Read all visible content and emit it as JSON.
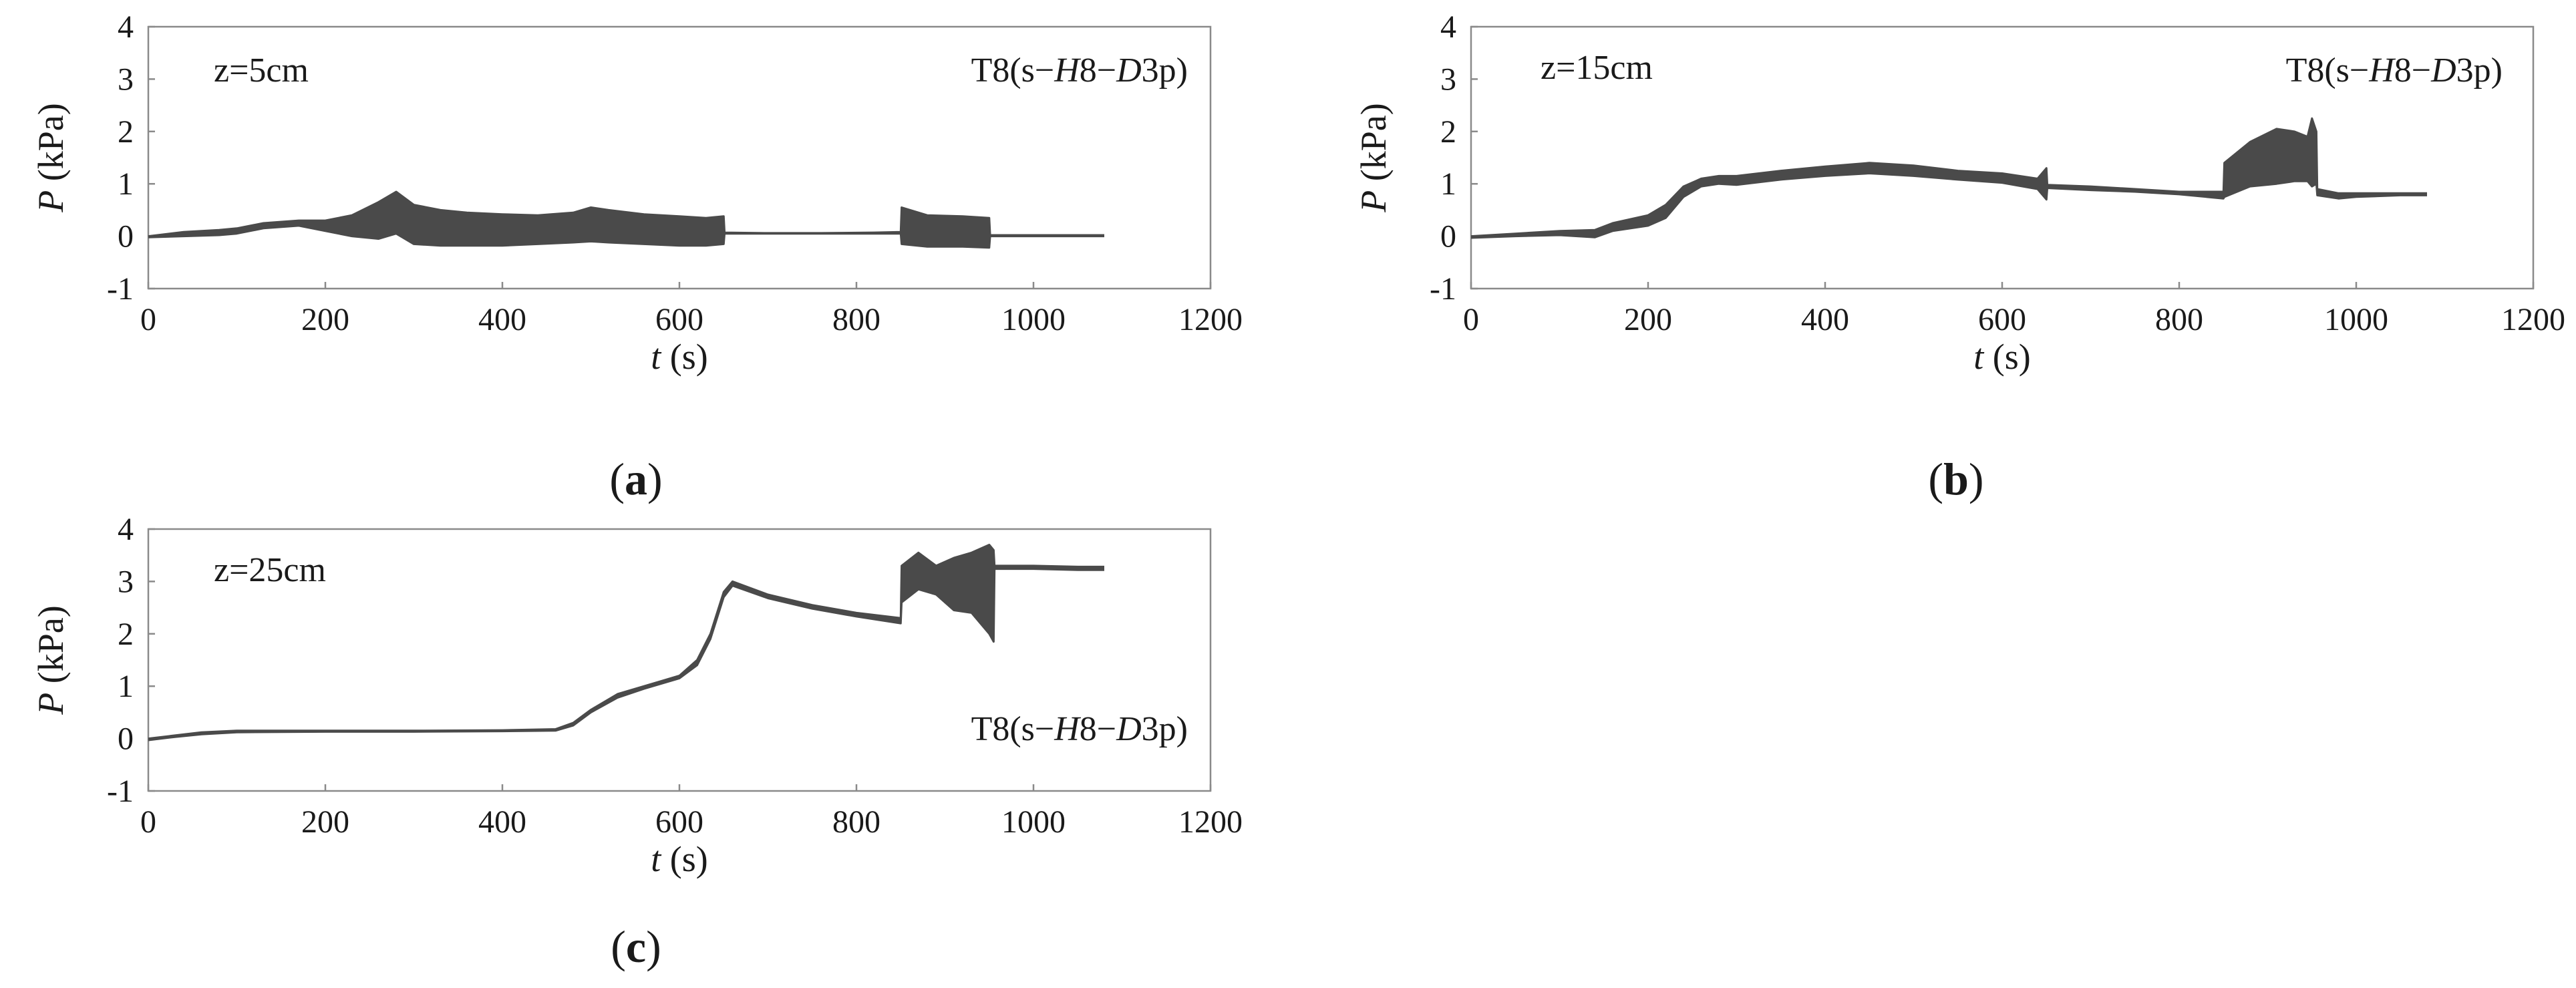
{
  "chart_data": [
    {
      "type": "line",
      "panel": "(a)",
      "caption_letter": "a",
      "depth_label": "z=5cm",
      "test_label": {
        "prefix": "T8(s−",
        "h": "H",
        "h_num": "8−",
        "d": "D",
        "suffix": "3p)"
      },
      "xlabel": {
        "var": "t",
        "unit": "(s)"
      },
      "ylabel": {
        "var": "P",
        "unit": "(kPa)"
      },
      "xlim": [
        0,
        1200
      ],
      "ylim": [
        -1,
        4
      ],
      "xticks": [
        0,
        200,
        400,
        600,
        800,
        1000,
        1200
      ],
      "yticks": [
        -1,
        0,
        1,
        2,
        3,
        4
      ],
      "xtick_labels": [
        "0",
        "200",
        "400",
        "600",
        "800",
        "1000",
        "1200"
      ],
      "ytick_labels": [
        "-1",
        "0",
        "1",
        "2",
        "3",
        "4"
      ],
      "series": [
        {
          "name": "upper envelope",
          "x": [
            0,
            40,
            80,
            100,
            130,
            170,
            200,
            230,
            260,
            280,
            300,
            330,
            360,
            400,
            440,
            480,
            500,
            520,
            560,
            600,
            630,
            650,
            651,
            700,
            760,
            820,
            850,
            851,
            880,
            920,
            950,
            951,
            1000,
            1050,
            1080
          ],
          "y": [
            0.0,
            0.08,
            0.12,
            0.15,
            0.25,
            0.3,
            0.3,
            0.4,
            0.65,
            0.85,
            0.6,
            0.5,
            0.45,
            0.42,
            0.4,
            0.45,
            0.55,
            0.5,
            0.42,
            0.38,
            0.35,
            0.38,
            0.07,
            0.06,
            0.06,
            0.07,
            0.08,
            0.55,
            0.4,
            0.38,
            0.35,
            0.02,
            0.02,
            0.02,
            0.02
          ]
        },
        {
          "name": "lower envelope",
          "x": [
            0,
            40,
            80,
            100,
            130,
            170,
            200,
            230,
            260,
            280,
            300,
            330,
            360,
            400,
            440,
            480,
            500,
            520,
            560,
            600,
            630,
            650,
            651,
            700,
            760,
            820,
            850,
            851,
            880,
            920,
            950,
            951,
            1000,
            1050,
            1080
          ],
          "y": [
            -0.02,
            0.0,
            0.02,
            0.05,
            0.15,
            0.2,
            0.1,
            0.0,
            -0.05,
            0.05,
            -0.15,
            -0.18,
            -0.18,
            -0.18,
            -0.15,
            -0.12,
            -0.1,
            -0.12,
            -0.15,
            -0.18,
            -0.18,
            -0.15,
            0.05,
            0.05,
            0.05,
            0.05,
            0.05,
            -0.15,
            -0.2,
            -0.2,
            -0.22,
            0.0,
            0.0,
            0.0,
            0.0
          ]
        }
      ]
    },
    {
      "type": "line",
      "panel": "(b)",
      "caption_letter": "b",
      "depth_label": "z=15cm",
      "test_label": {
        "prefix": "T8(s−",
        "h": "H",
        "h_num": "8−",
        "d": "D",
        "suffix": "3p)"
      },
      "xlabel": {
        "var": "t",
        "unit": "(s)"
      },
      "ylabel": {
        "var": "P",
        "unit": "(kPa)"
      },
      "xlim": [
        0,
        1200
      ],
      "ylim": [
        -1,
        4
      ],
      "xticks": [
        0,
        200,
        400,
        600,
        800,
        1000,
        1200
      ],
      "yticks": [
        -1,
        0,
        1,
        2,
        3,
        4
      ],
      "xtick_labels": [
        "0",
        "200",
        "400",
        "600",
        "800",
        "1000",
        "1200"
      ],
      "ytick_labels": [
        "-1",
        "0",
        "1",
        "2",
        "3",
        "4"
      ],
      "series": [
        {
          "name": "upper envelope",
          "x": [
            0,
            50,
            100,
            140,
            160,
            200,
            220,
            240,
            260,
            280,
            300,
            350,
            400,
            450,
            500,
            550,
            600,
            640,
            650,
            651,
            700,
            750,
            800,
            850,
            851,
            880,
            910,
            930,
            945,
            950,
            955,
            956,
            980,
            1000,
            1050,
            1080
          ],
          "y": [
            0.0,
            0.05,
            0.1,
            0.12,
            0.25,
            0.4,
            0.6,
            0.95,
            1.1,
            1.15,
            1.15,
            1.25,
            1.33,
            1.4,
            1.35,
            1.25,
            1.2,
            1.1,
            1.3,
            0.98,
            0.95,
            0.9,
            0.85,
            0.85,
            1.4,
            1.8,
            2.05,
            2.0,
            1.9,
            2.25,
            2.0,
            0.9,
            0.82,
            0.82,
            0.82,
            0.82
          ]
        },
        {
          "name": "lower envelope",
          "x": [
            0,
            50,
            100,
            140,
            160,
            200,
            220,
            240,
            260,
            280,
            300,
            350,
            400,
            450,
            500,
            550,
            600,
            640,
            650,
            651,
            700,
            750,
            800,
            850,
            851,
            880,
            910,
            930,
            945,
            950,
            955,
            956,
            980,
            1000,
            1050,
            1080
          ],
          "y": [
            -0.03,
            0.0,
            0.02,
            -0.02,
            0.1,
            0.2,
            0.35,
            0.75,
            0.95,
            1.0,
            0.98,
            1.08,
            1.15,
            1.2,
            1.15,
            1.08,
            1.02,
            0.9,
            0.7,
            0.92,
            0.88,
            0.85,
            0.8,
            0.72,
            0.75,
            0.95,
            1.0,
            1.05,
            1.05,
            0.95,
            1.0,
            0.78,
            0.72,
            0.75,
            0.78,
            0.78
          ]
        }
      ]
    },
    {
      "type": "line",
      "panel": "(c)",
      "caption_letter": "c",
      "depth_label": "z=25cm",
      "test_label": {
        "prefix": "T8(s−",
        "h": "H",
        "h_num": "8−",
        "d": "D",
        "suffix": "3p)"
      },
      "xlabel": {
        "var": "t",
        "unit": "(s)"
      },
      "ylabel": {
        "var": "P",
        "unit": "(kPa)"
      },
      "xlim": [
        0,
        1200
      ],
      "ylim": [
        -1,
        4
      ],
      "xticks": [
        0,
        200,
        400,
        600,
        800,
        1000,
        1200
      ],
      "yticks": [
        -1,
        0,
        1,
        2,
        3,
        4
      ],
      "xtick_labels": [
        "0",
        "200",
        "400",
        "600",
        "800",
        "1000",
        "1200"
      ],
      "ytick_labels": [
        "-1",
        "0",
        "1",
        "2",
        "3",
        "4"
      ],
      "series": [
        {
          "name": "upper envelope",
          "x": [
            0,
            30,
            60,
            100,
            200,
            300,
            400,
            460,
            480,
            500,
            530,
            560,
            600,
            620,
            635,
            650,
            660,
            700,
            750,
            800,
            850,
            851,
            870,
            890,
            910,
            930,
            950,
            955,
            956,
            1000,
            1050,
            1080
          ],
          "y": [
            0.0,
            0.06,
            0.12,
            0.15,
            0.15,
            0.15,
            0.16,
            0.18,
            0.3,
            0.55,
            0.85,
            1.0,
            1.2,
            1.5,
            2.0,
            2.8,
            3.0,
            2.75,
            2.55,
            2.4,
            2.3,
            3.3,
            3.55,
            3.3,
            3.45,
            3.55,
            3.7,
            3.6,
            3.3,
            3.3,
            3.28,
            3.28
          ]
        },
        {
          "name": "lower envelope",
          "x": [
            0,
            30,
            60,
            100,
            200,
            300,
            400,
            460,
            480,
            500,
            530,
            560,
            600,
            620,
            635,
            650,
            660,
            700,
            750,
            800,
            850,
            851,
            870,
            890,
            910,
            930,
            950,
            955,
            956,
            1000,
            1050,
            1080
          ],
          "y": [
            -0.03,
            0.03,
            0.08,
            0.12,
            0.13,
            0.13,
            0.14,
            0.15,
            0.25,
            0.5,
            0.78,
            0.95,
            1.15,
            1.4,
            1.9,
            2.7,
            2.92,
            2.68,
            2.48,
            2.33,
            2.2,
            2.6,
            2.85,
            2.75,
            2.45,
            2.4,
            2.0,
            1.85,
            3.24,
            3.24,
            3.22,
            3.22
          ]
        }
      ]
    }
  ]
}
